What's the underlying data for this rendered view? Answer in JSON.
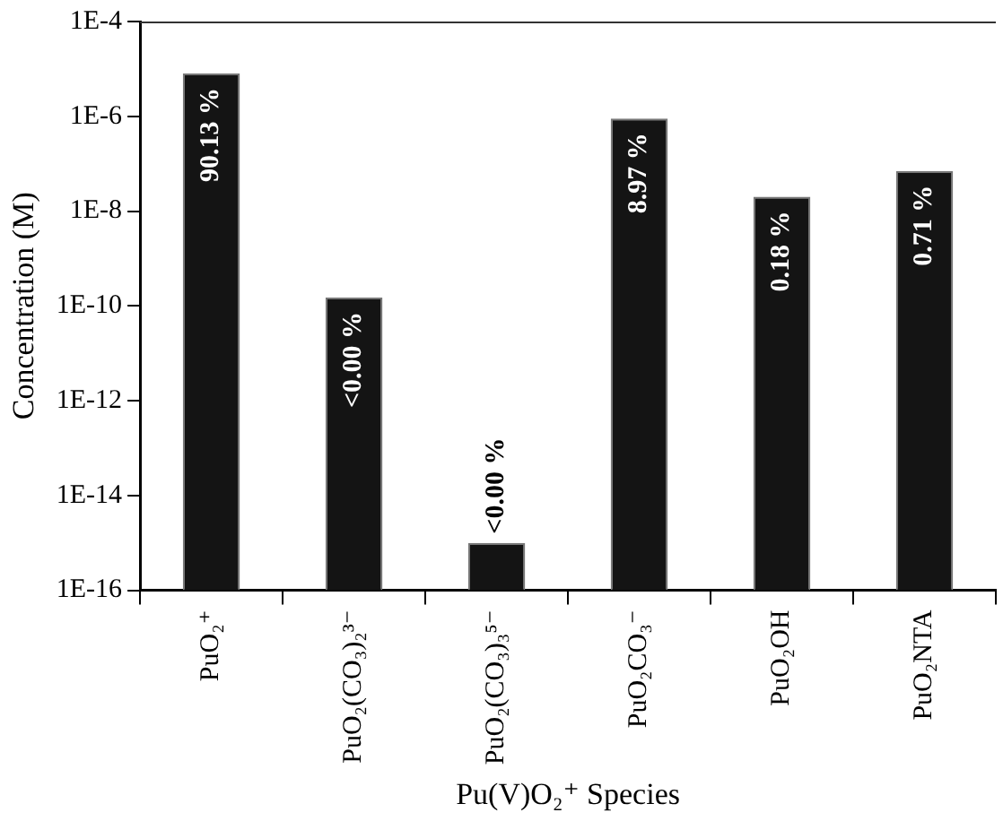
{
  "chart_data": {
    "type": "bar",
    "ylabel": "Concentration (M)",
    "xlabel": "Pu(V)O₂⁺ Species",
    "categories": [
      "PuO₂⁺",
      "PuO₂(CO₃)₂³⁻",
      "PuO₂(CO₃)₃⁵⁻",
      "PuO₂CO₃⁻",
      "PuO₂OH",
      "PuO₂NTA"
    ],
    "values": [
      8e-06,
      1.5e-10,
      1e-15,
      9e-07,
      2e-08,
      7e-08
    ],
    "annotations": [
      {
        "text": "90.13 %",
        "x": "PuO₂⁺",
        "y": 8e-06
      },
      {
        "text": "<0.00 %",
        "x": "PuO₂(CO₃)₂³⁻",
        "y": 1.5e-10
      },
      {
        "text": "<0.00 %",
        "x": "PuO₂(CO₃)₃⁵⁻",
        "y": 1e-15
      },
      {
        "text": "8.97 %",
        "x": "PuO₂CO₃⁻",
        "y": 9e-07
      },
      {
        "text": "0.18 %",
        "x": "PuO₂OH",
        "y": 2e-08
      },
      {
        "text": "0.71 %",
        "x": "PuO₂NTA",
        "y": 7e-08
      }
    ],
    "color": "#141414",
    "log": "y",
    "ylim": [
      1e-16,
      0.0001
    ],
    "yticks": [
      {
        "value": 1e-16,
        "label": "1E-16"
      },
      {
        "value": 1e-14,
        "label": "1E-14"
      },
      {
        "value": 1e-12,
        "label": "1E-12"
      },
      {
        "value": 1e-10,
        "label": "1E-10"
      },
      {
        "value": 1e-08,
        "label": "1E-8"
      },
      {
        "value": 1e-06,
        "label": "1E-6"
      },
      {
        "value": 0.0001,
        "label": "1E-4"
      }
    ],
    "grid": false,
    "legend": false
  }
}
